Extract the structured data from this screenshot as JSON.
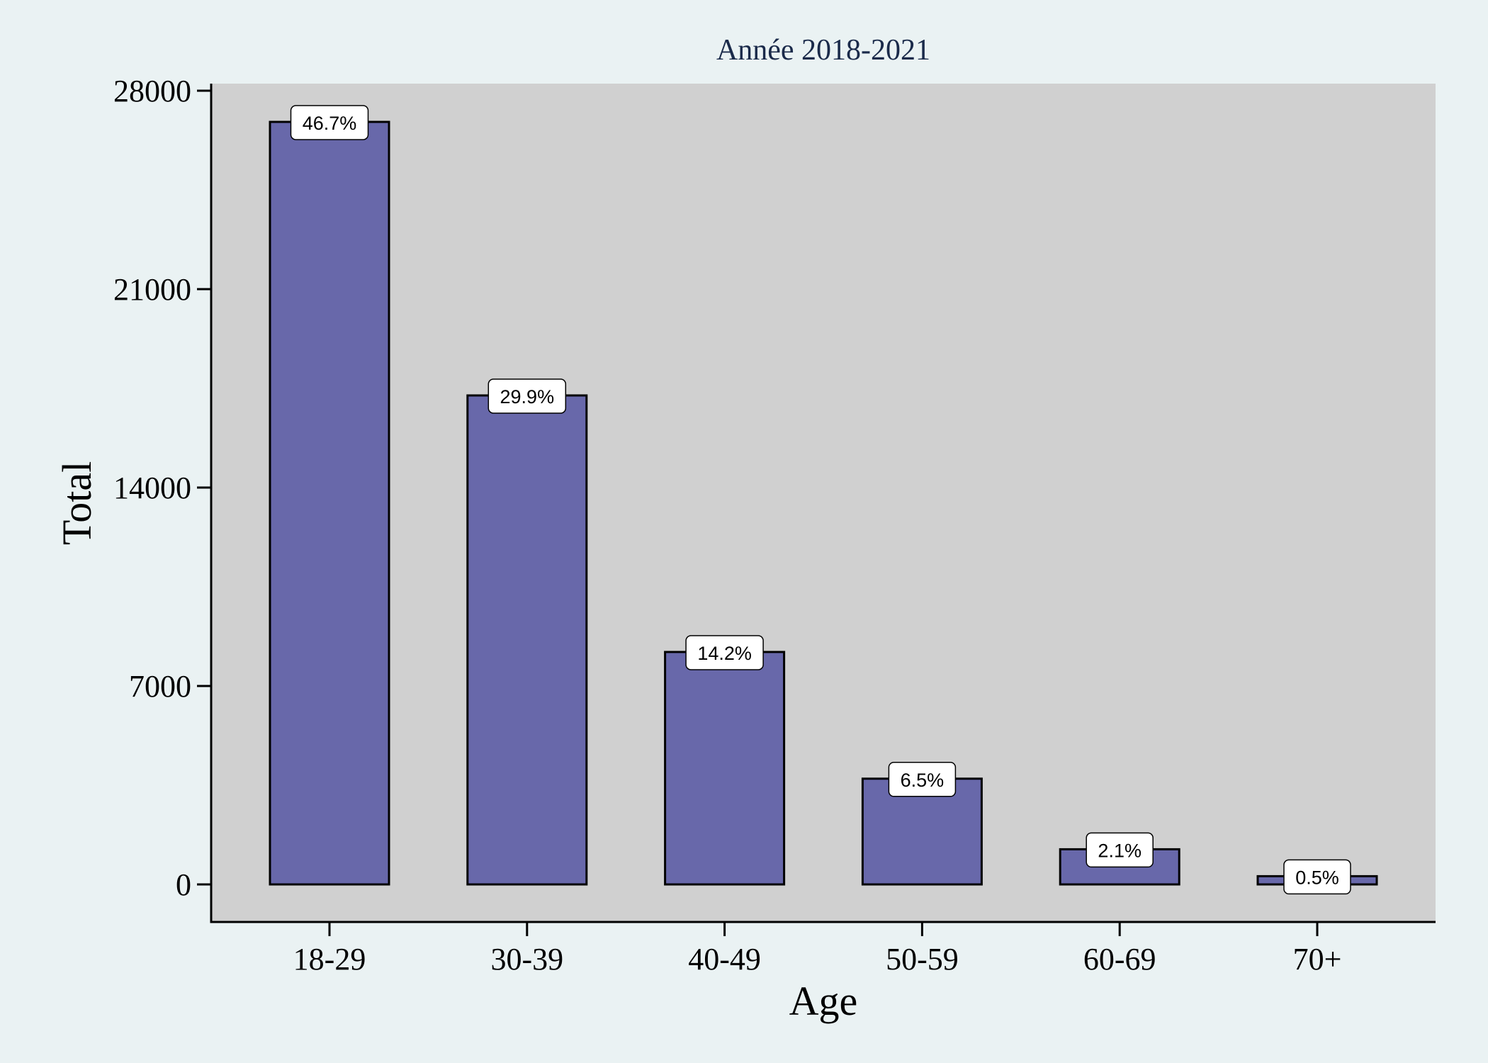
{
  "chart_data": {
    "type": "bar",
    "title": "Année 2018-2021",
    "xlabel": "Age",
    "ylabel": "Total",
    "categories": [
      "18-29",
      "30-39",
      "40-49",
      "50-59",
      "60-69",
      "70+"
    ],
    "values": [
      26900,
      17250,
      8200,
      3730,
      1240,
      290
    ],
    "data_labels": [
      "46.7%",
      "29.9%",
      "14.2%",
      "6.5%",
      "2.1%",
      "0.5%"
    ],
    "yticks": [
      0,
      7000,
      14000,
      21000,
      28000
    ],
    "ytick_labels": [
      "0",
      "7000",
      "14000",
      "21000",
      "28000"
    ],
    "ylim": [
      -1300,
      28000
    ],
    "grid": false,
    "colors": {
      "bar": "#6868aa",
      "plot_background": "#d0d0d0",
      "page_background": "#eaf2f3",
      "title": "#1a2a4a"
    }
  }
}
